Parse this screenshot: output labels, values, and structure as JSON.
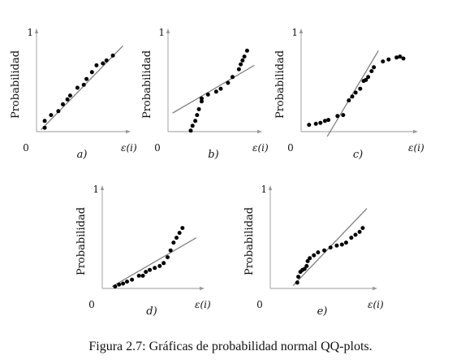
{
  "caption": "Figura 2.7: Gráficas de probabilidad normal QQ-plots.",
  "colors": {
    "axis": "#999999",
    "line": "#777777",
    "point": "#000000",
    "text": "#111111"
  },
  "chart_data": [
    {
      "type": "scatter",
      "panel_label": "a)",
      "ylabel": "Probabilidad",
      "xlabel": "ε(i)",
      "y_tick_top": "1",
      "origin_label": "0",
      "xlim": [
        0,
        1
      ],
      "ylim": [
        0,
        1
      ],
      "grid": false,
      "reference_line": [
        [
          0.05,
          0.02
        ],
        [
          0.95,
          0.88
        ]
      ],
      "points": [
        [
          0.09,
          0.04
        ],
        [
          0.09,
          0.11
        ],
        [
          0.16,
          0.17
        ],
        [
          0.24,
          0.21
        ],
        [
          0.29,
          0.28
        ],
        [
          0.34,
          0.33
        ],
        [
          0.37,
          0.37
        ],
        [
          0.45,
          0.45
        ],
        [
          0.52,
          0.48
        ],
        [
          0.55,
          0.54
        ],
        [
          0.61,
          0.61
        ],
        [
          0.66,
          0.68
        ],
        [
          0.73,
          0.7
        ],
        [
          0.77,
          0.73
        ],
        [
          0.84,
          0.78
        ]
      ]
    },
    {
      "type": "scatter",
      "panel_label": "b)",
      "ylabel": "Probabilidad",
      "xlabel": "ε(i)",
      "y_tick_top": "1",
      "origin_label": "0",
      "xlim": [
        0,
        1
      ],
      "ylim": [
        0,
        1
      ],
      "grid": false,
      "reference_line": [
        [
          0.05,
          0.19
        ],
        [
          0.95,
          0.68
        ]
      ],
      "points": [
        [
          0.25,
          0.01
        ],
        [
          0.27,
          0.06
        ],
        [
          0.3,
          0.11
        ],
        [
          0.32,
          0.17
        ],
        [
          0.34,
          0.23
        ],
        [
          0.37,
          0.31
        ],
        [
          0.37,
          0.34
        ],
        [
          0.44,
          0.38
        ],
        [
          0.53,
          0.41
        ],
        [
          0.58,
          0.44
        ],
        [
          0.66,
          0.5
        ],
        [
          0.71,
          0.56
        ],
        [
          0.78,
          0.64
        ],
        [
          0.8,
          0.69
        ],
        [
          0.82,
          0.73
        ],
        [
          0.84,
          0.77
        ],
        [
          0.87,
          0.83
        ]
      ]
    },
    {
      "type": "scatter",
      "panel_label": "c)",
      "ylabel": "Probabilidad",
      "xlabel": "ε(i)",
      "y_tick_top": "1",
      "origin_label": "0",
      "xlim": [
        0,
        1
      ],
      "ylim": [
        0,
        1
      ],
      "grid": false,
      "reference_line": [
        [
          0.23,
          -0.05
        ],
        [
          0.68,
          0.83
        ]
      ],
      "points": [
        [
          0.07,
          0.07
        ],
        [
          0.13,
          0.08
        ],
        [
          0.17,
          0.09
        ],
        [
          0.21,
          0.11
        ],
        [
          0.24,
          0.12
        ],
        [
          0.32,
          0.16
        ],
        [
          0.37,
          0.17
        ],
        [
          0.42,
          0.32
        ],
        [
          0.45,
          0.36
        ],
        [
          0.48,
          0.4
        ],
        [
          0.52,
          0.44
        ],
        [
          0.55,
          0.52
        ],
        [
          0.57,
          0.53
        ],
        [
          0.59,
          0.56
        ],
        [
          0.62,
          0.62
        ],
        [
          0.64,
          0.66
        ],
        [
          0.72,
          0.72
        ],
        [
          0.77,
          0.74
        ],
        [
          0.84,
          0.76
        ],
        [
          0.87,
          0.77
        ],
        [
          0.9,
          0.75
        ]
      ]
    },
    {
      "type": "scatter",
      "panel_label": "d)",
      "ylabel": "Probabilidad",
      "xlabel": "ε(i)",
      "y_tick_top": "1",
      "origin_label": "0",
      "xlim": [
        0,
        1
      ],
      "ylim": [
        0,
        1
      ],
      "grid": false,
      "reference_line": [
        [
          0.1,
          0.02
        ],
        [
          0.95,
          0.52
        ]
      ],
      "points": [
        [
          0.13,
          0.02
        ],
        [
          0.17,
          0.04
        ],
        [
          0.21,
          0.05
        ],
        [
          0.25,
          0.07
        ],
        [
          0.3,
          0.09
        ],
        [
          0.37,
          0.13
        ],
        [
          0.41,
          0.13
        ],
        [
          0.44,
          0.17
        ],
        [
          0.48,
          0.19
        ],
        [
          0.53,
          0.21
        ],
        [
          0.58,
          0.23
        ],
        [
          0.62,
          0.26
        ],
        [
          0.66,
          0.32
        ],
        [
          0.69,
          0.39
        ],
        [
          0.72,
          0.47
        ],
        [
          0.75,
          0.52
        ],
        [
          0.78,
          0.57
        ],
        [
          0.81,
          0.62
        ]
      ]
    },
    {
      "type": "scatter",
      "panel_label": "e)",
      "ylabel": "Probabilidad",
      "xlabel": "ε(i)",
      "y_tick_top": "1",
      "origin_label": "0",
      "xlim": [
        0,
        1
      ],
      "ylim": [
        0,
        1
      ],
      "grid": false,
      "reference_line": [
        [
          0.22,
          0.03
        ],
        [
          0.93,
          0.82
        ]
      ],
      "points": [
        [
          0.26,
          0.06
        ],
        [
          0.27,
          0.12
        ],
        [
          0.29,
          0.17
        ],
        [
          0.31,
          0.19
        ],
        [
          0.33,
          0.2
        ],
        [
          0.35,
          0.23
        ],
        [
          0.36,
          0.28
        ],
        [
          0.38,
          0.31
        ],
        [
          0.42,
          0.34
        ],
        [
          0.46,
          0.37
        ],
        [
          0.52,
          0.39
        ],
        [
          0.58,
          0.42
        ],
        [
          0.64,
          0.44
        ],
        [
          0.69,
          0.45
        ],
        [
          0.73,
          0.47
        ],
        [
          0.78,
          0.52
        ],
        [
          0.82,
          0.55
        ],
        [
          0.86,
          0.58
        ],
        [
          0.89,
          0.62
        ]
      ]
    }
  ]
}
